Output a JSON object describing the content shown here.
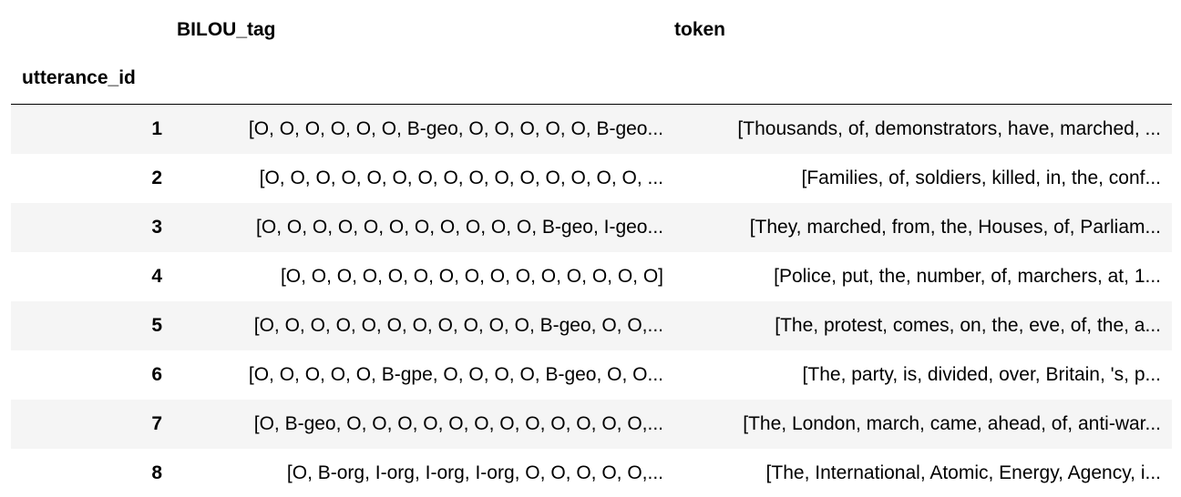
{
  "table": {
    "columns": [
      "BILOU_tag",
      "token"
    ],
    "index_name": "utterance_id",
    "rows": [
      {
        "index": "1",
        "BILOU_tag": "[O, O, O, O, O, O, B-geo, O, O, O, O, O, B-geo...",
        "token": "[Thousands, of, demonstrators, have, marched, ..."
      },
      {
        "index": "2",
        "BILOU_tag": "[O, O, O, O, O, O, O, O, O, O, O, O, O, O, O, ...",
        "token": "[Families, of, soldiers, killed, in, the, conf..."
      },
      {
        "index": "3",
        "BILOU_tag": "[O, O, O, O, O, O, O, O, O, O, O, B-geo, I-geo...",
        "token": "[They, marched, from, the, Houses, of, Parliam..."
      },
      {
        "index": "4",
        "BILOU_tag": "[O, O, O, O, O, O, O, O, O, O, O, O, O, O, O]",
        "token": "[Police, put, the, number, of, marchers, at, 1..."
      },
      {
        "index": "5",
        "BILOU_tag": "[O, O, O, O, O, O, O, O, O, O, O, B-geo, O, O,...",
        "token": "[The, protest, comes, on, the, eve, of, the, a..."
      },
      {
        "index": "6",
        "BILOU_tag": "[O, O, O, O, O, B-gpe, O, O, O, O, B-geo, O, O...",
        "token": "[The, party, is, divided, over, Britain, 's, p..."
      },
      {
        "index": "7",
        "BILOU_tag": "[O, B-geo, O, O, O, O, O, O, O, O, O, O, O, O,...",
        "token": "[The, London, march, came, ahead, of, anti-war..."
      },
      {
        "index": "8",
        "BILOU_tag": "[O, B-org, I-org, I-org, I-org, O, O, O, O, O,...",
        "token": "[The, International, Atomic, Energy, Agency, i..."
      }
    ]
  }
}
